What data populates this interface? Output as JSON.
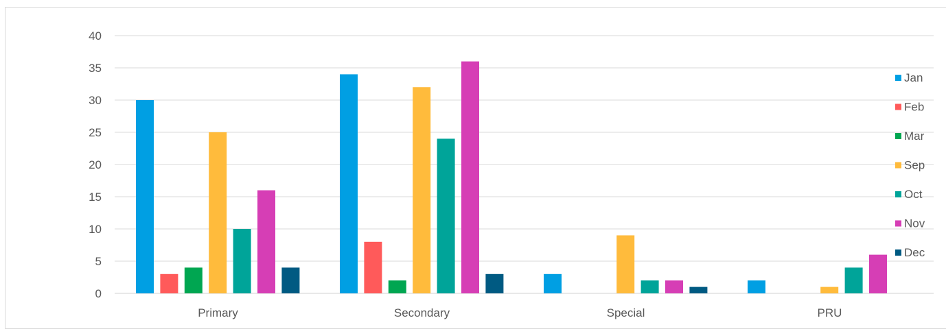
{
  "chart_data": {
    "type": "bar",
    "title": "",
    "xlabel": "",
    "ylabel": "",
    "ylim": [
      0,
      40
    ],
    "yticks": [
      0,
      5,
      10,
      15,
      20,
      25,
      30,
      35,
      40
    ],
    "grid": true,
    "legend_position": "right",
    "categories": [
      "Primary",
      "Secondary",
      "Special",
      "PRU"
    ],
    "series": [
      {
        "name": "Jan",
        "color": "#009fe3",
        "values": [
          30,
          34,
          3,
          2
        ]
      },
      {
        "name": "Feb",
        "color": "#ff5a5a",
        "values": [
          3,
          8,
          0,
          0
        ]
      },
      {
        "name": "Mar",
        "color": "#00a651",
        "values": [
          4,
          2,
          0,
          0
        ]
      },
      {
        "name": "Sep",
        "color": "#ffbb3c",
        "values": [
          25,
          32,
          9,
          1
        ]
      },
      {
        "name": "Oct",
        "color": "#00a499",
        "values": [
          10,
          24,
          2,
          4
        ]
      },
      {
        "name": "Nov",
        "color": "#d63eb5",
        "values": [
          16,
          36,
          2,
          6
        ]
      },
      {
        "name": "Dec",
        "color": "#005a82",
        "values": [
          4,
          3,
          1,
          0
        ]
      }
    ]
  }
}
